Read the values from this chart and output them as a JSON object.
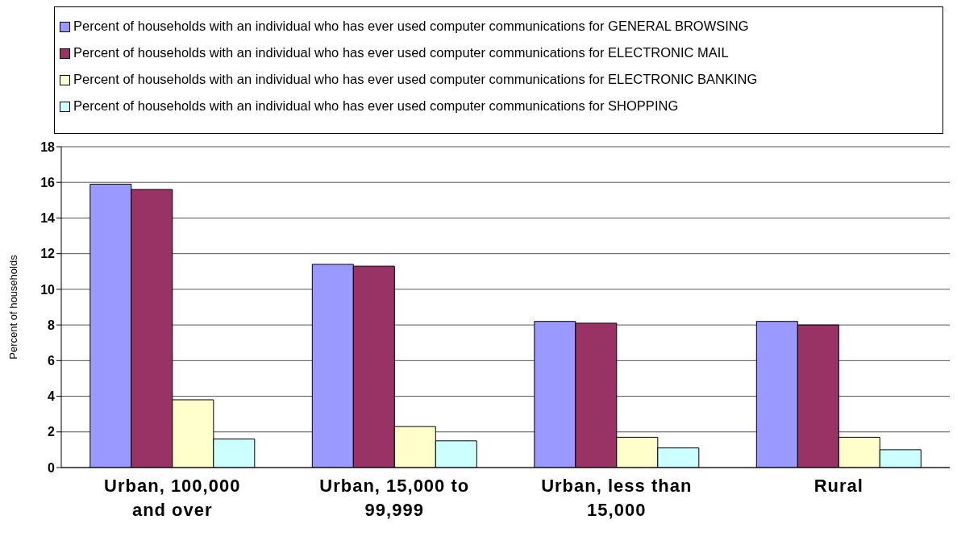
{
  "chart_data": {
    "type": "bar",
    "categories": [
      "Urban, 100,000 and over",
      "Urban, 15,000 to 99,999",
      "Urban, less than 15,000",
      "Rural"
    ],
    "series": [
      {
        "name": "Percent of households with an individual who has ever used computer communications for GENERAL BROWSING",
        "color": "#9999ff",
        "values": [
          15.9,
          11.4,
          8.2,
          8.2
        ]
      },
      {
        "name": "Percent of households with an individual who has ever used computer communications for ELECTRONIC MAIL",
        "color": "#993366",
        "values": [
          15.6,
          11.3,
          8.1,
          8.0
        ]
      },
      {
        "name": "Percent of households with an individual who has ever used computer communications for ELECTRONIC BANKING",
        "color": "#ffffcc",
        "values": [
          3.8,
          2.3,
          1.7,
          1.7
        ]
      },
      {
        "name": "Percent of households with an individual who has ever used computer communications for SHOPPING",
        "color": "#ccffff",
        "values": [
          1.6,
          1.5,
          1.1,
          1.0
        ]
      }
    ],
    "ylabel": "Percent of households",
    "ylim": [
      0,
      18
    ],
    "yticks": [
      0,
      2,
      4,
      6,
      8,
      10,
      12,
      14,
      16,
      18
    ],
    "grid": "y",
    "legend": "top"
  }
}
